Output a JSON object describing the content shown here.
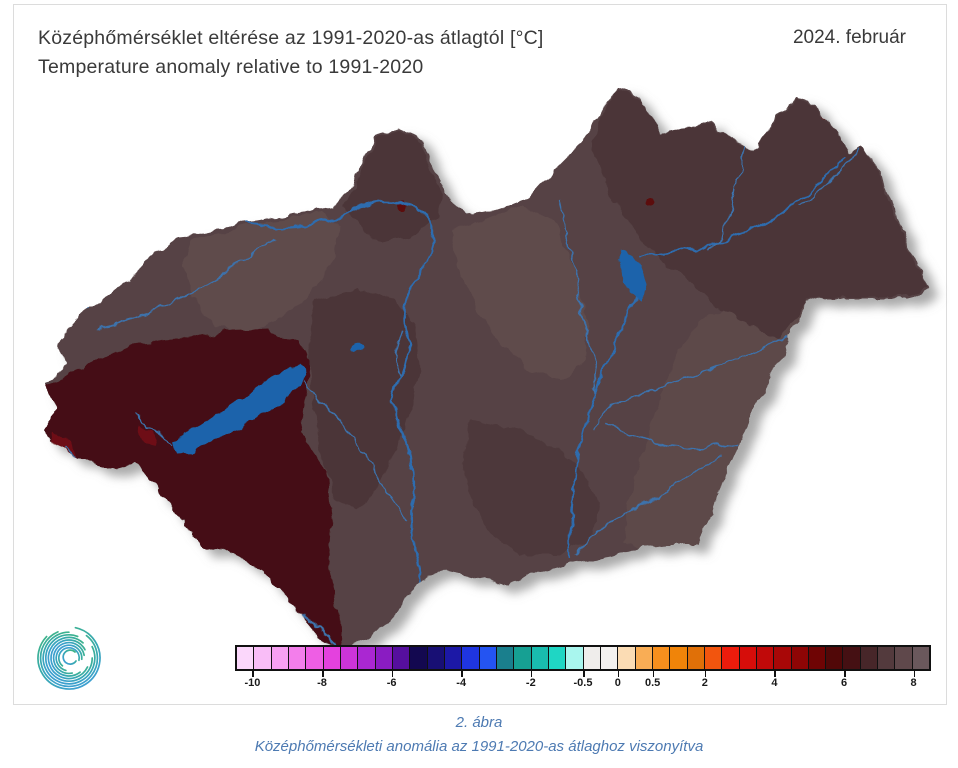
{
  "header": {
    "title_hu": "Középhőmérséklet eltérése az 1991-2020-as átlagtól [°C]",
    "title_en": "Temperature anomaly relative to 1991-2020",
    "period": "2024. február"
  },
  "caption": {
    "line1": "2. ábra",
    "line2": "Középhőmérsékleti anomália az 1991-2020-as átlaghoz viszonyítva"
  },
  "map": {
    "region_name": "Hungary",
    "kind": "temperature-anomaly-choropleth",
    "colors": {
      "base": "#564244",
      "dark_patch": "#4b3639",
      "light_patch": "#5f4b4c",
      "southwest_maroon": "#441115",
      "accent_red": "#6e1113",
      "lake_blue": "#1b64ab",
      "river_blue": "#3e72ab",
      "shadow_grey": "#949494"
    },
    "features": [
      "lake-balaton",
      "lake-tisza",
      "lake-ferto",
      "lake-velence",
      "danube-river",
      "tisza-river",
      "drava-river",
      "raba-river",
      "sio-river",
      "zala-river",
      "koros-river",
      "maros-river",
      "zagyva-river",
      "hernad-river",
      "bodrog-river",
      "ipoly-river"
    ]
  },
  "colorbar": {
    "n_cells": 40,
    "unit": "°C",
    "cell_colors": [
      "#fbd7fb",
      "#f9bdf7",
      "#f7a0f2",
      "#f37eeb",
      "#ee5ee4",
      "#e441de",
      "#cc34d9",
      "#aa27d2",
      "#8a1cc2",
      "#560f9e",
      "#130850",
      "#180f74",
      "#1c18a6",
      "#1f35e0",
      "#2454f2",
      "#1a7f8d",
      "#16a093",
      "#19bcae",
      "#1fd6c4",
      "#a9f6ee",
      "#efedeb",
      "#f3f1ef",
      "#fbdcb4",
      "#f9ad55",
      "#f78f1d",
      "#f08409",
      "#e07008",
      "#f2550e",
      "#ec1c0c",
      "#d60d0a",
      "#c00909",
      "#a80707",
      "#8e0505",
      "#6f0404",
      "#510808",
      "#451013",
      "#472629",
      "#533a3d",
      "#5f484b",
      "#6a585c"
    ],
    "ticks": [
      {
        "label": "-10",
        "boundary": 1
      },
      {
        "label": "-8",
        "boundary": 5
      },
      {
        "label": "-6",
        "boundary": 9
      },
      {
        "label": "-4",
        "boundary": 13
      },
      {
        "label": "-2",
        "boundary": 17
      },
      {
        "label": "-0.5",
        "boundary": 20
      },
      {
        "label": "0",
        "boundary": 22
      },
      {
        "label": "0.5",
        "boundary": 24
      },
      {
        "label": "2",
        "boundary": 27
      },
      {
        "label": "4",
        "boundary": 31
      },
      {
        "label": "6",
        "boundary": 35
      },
      {
        "label": "8",
        "boundary": 39
      }
    ]
  },
  "logo": {
    "name": "hungaromet-spiral-logo",
    "color_start": "#3e9ed6",
    "color_mid": "#36a8b0",
    "color_end": "#3fb583"
  },
  "chart_data": {
    "type": "heatmap",
    "title": "Középhőmérséklet eltérése az 1991-2020-as átlagtól [°C]",
    "subtitle": "Temperature anomaly relative to 1991-2020",
    "period": "2024. február",
    "region": "Hungary",
    "unit": "°C",
    "scale_range": [
      -10.5,
      8.5
    ],
    "scale_ticks": [
      -10,
      -8,
      -6,
      -4,
      -2,
      -0.5,
      0,
      0.5,
      2,
      4,
      6,
      8
    ],
    "legend_position": "bottom",
    "reading": "Entire country strongly above average: mostly +6.5 to +7.5 °C (dark brown-grey tones); southwest around +5.5 to +6.5 °C (dark maroon/red tones); small eastern/northern patches up to +8 °C"
  }
}
